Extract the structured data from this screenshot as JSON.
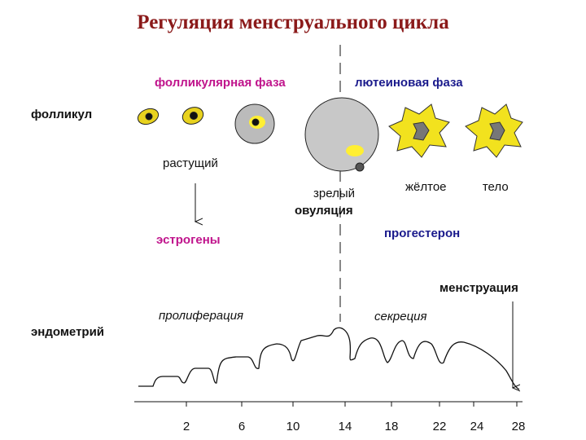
{
  "header": {
    "title": "Регуляция менструального цикла"
  },
  "phases": {
    "follicular": "фолликулярная фаза",
    "luteal": "лютеиновая фаза"
  },
  "labels": {
    "follicle": "фолликул",
    "growing": "растущий",
    "mature": "зрелый",
    "ovulation": "овуляция",
    "corpus_luteum": "жёлтое  тело",
    "estrogens": "эстрогены",
    "progesterone": "прогестерон",
    "menstruation": "менструация",
    "endometrium": "эндометрий",
    "proliferation": "пролиферация",
    "secretion": "секреция"
  },
  "days": [
    "2",
    "6",
    "10",
    "14",
    "18",
    "22",
    "24",
    "28"
  ]
}
